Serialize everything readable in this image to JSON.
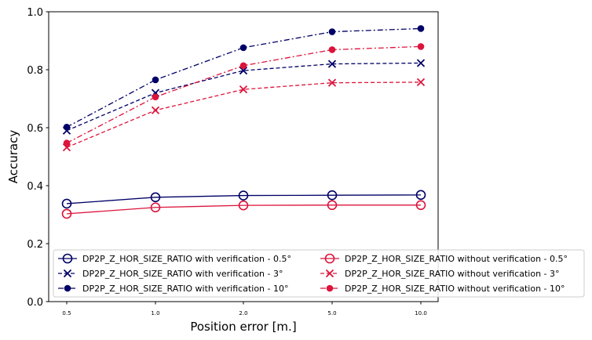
{
  "chart_data": {
    "type": "line",
    "xlabel": "Position error [m.]",
    "ylabel": "Accuracy",
    "categories": [
      "0.5",
      "1.0",
      "2.0",
      "5.0",
      "10.0"
    ],
    "ylim": [
      0.0,
      1.0
    ],
    "yticks": [
      "0.0",
      "0.2",
      "0.4",
      "0.6",
      "0.8",
      "1.0"
    ],
    "grid": false,
    "legend_position": "bottom",
    "series": [
      {
        "name": "DP2P_Z_HOR_SIZE_RATIO with verification - 0.5°",
        "values": [
          0.338,
          0.36,
          0.366,
          0.367,
          0.368
        ],
        "color": "#000066",
        "linestyle": "solid",
        "marker": "open-circle"
      },
      {
        "name": "DP2P_Z_HOR_SIZE_RATIO with verification - 3°",
        "values": [
          0.59,
          0.72,
          0.797,
          0.82,
          0.823
        ],
        "color": "#000066",
        "linestyle": "dashed",
        "marker": "x"
      },
      {
        "name": "DP2P_Z_HOR_SIZE_RATIO with verification - 10°",
        "values": [
          0.602,
          0.765,
          0.876,
          0.931,
          0.942
        ],
        "color": "#000066",
        "linestyle": "dashdot",
        "marker": "filled-circle"
      },
      {
        "name": "DP2P_Z_HOR_SIZE_RATIO without verification - 0.5°",
        "values": [
          0.303,
          0.325,
          0.332,
          0.333,
          0.333
        ],
        "color": "#dc143c",
        "linestyle": "solid",
        "marker": "open-circle"
      },
      {
        "name": "DP2P_Z_HOR_SIZE_RATIO without verification - 3°",
        "values": [
          0.532,
          0.66,
          0.732,
          0.755,
          0.757
        ],
        "color": "#dc143c",
        "linestyle": "dashed",
        "marker": "x"
      },
      {
        "name": "DP2P_Z_HOR_SIZE_RATIO without verification - 10°",
        "values": [
          0.547,
          0.706,
          0.814,
          0.869,
          0.88
        ],
        "color": "#dc143c",
        "linestyle": "dashdot",
        "marker": "filled-circle"
      }
    ]
  }
}
